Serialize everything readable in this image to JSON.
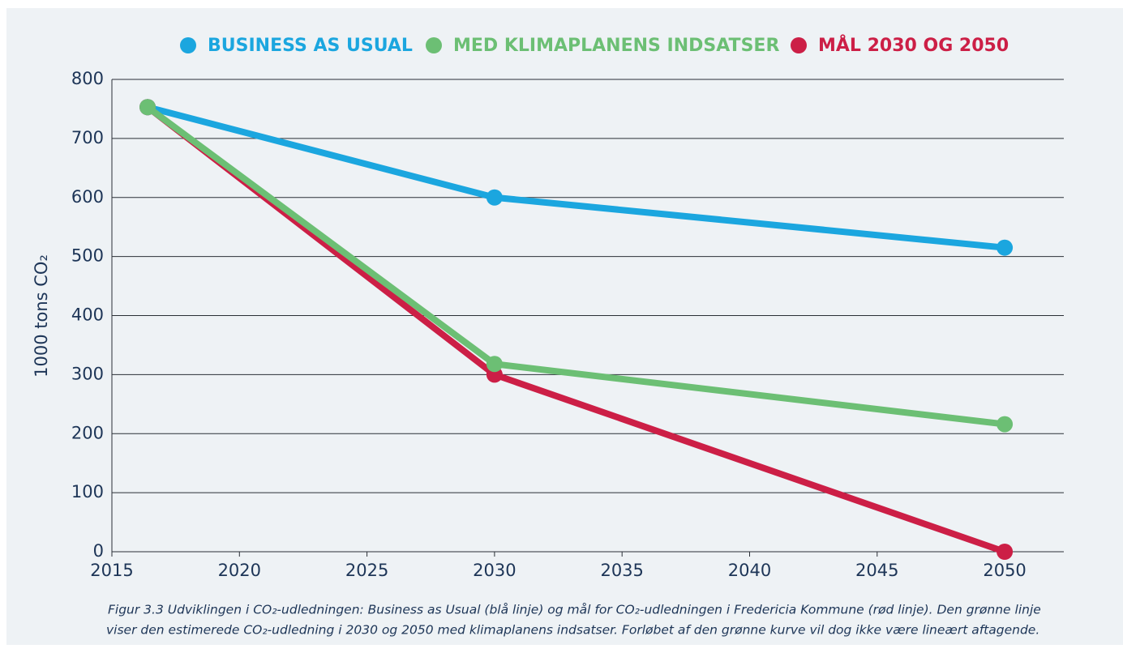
{
  "chart_data": {
    "type": "line",
    "ylabel": "1000 tons CO₂",
    "x": [
      2016.4,
      2030,
      2050
    ],
    "series": [
      {
        "name": "BUSINESS AS USUAL",
        "color": "#1ba6df",
        "values": [
          753,
          600,
          515
        ]
      },
      {
        "name": "MED KLIMAPLANENS INDSATSER",
        "color": "#6cbf74",
        "values": [
          753,
          318,
          216
        ]
      },
      {
        "name": "MÅL 2030 OG 2050",
        "color": "#cc1f46",
        "values": [
          753,
          300,
          0
        ]
      }
    ],
    "xlim": [
      2015,
      2052
    ],
    "xticks": [
      2015,
      2020,
      2025,
      2030,
      2035,
      2040,
      2045,
      2050
    ],
    "ylim": [
      0,
      800
    ],
    "yticks": [
      0,
      100,
      200,
      300,
      400,
      500,
      600,
      700,
      800
    ],
    "grid": true,
    "legend": "top",
    "caption": [
      "Figur 3.3 Udviklingen i CO₂-udledningen: Business as Usual (blå linje) og mål for CO₂-udledningen i Fredericia Kommune (rød linje). Den grønne linje",
      "viser den estimerede CO₂-udledning i 2030 og 2050 med klimaplanens indsatser. Forløbet af den grønne kurve vil dog ikke være lineært aftagende."
    ]
  }
}
